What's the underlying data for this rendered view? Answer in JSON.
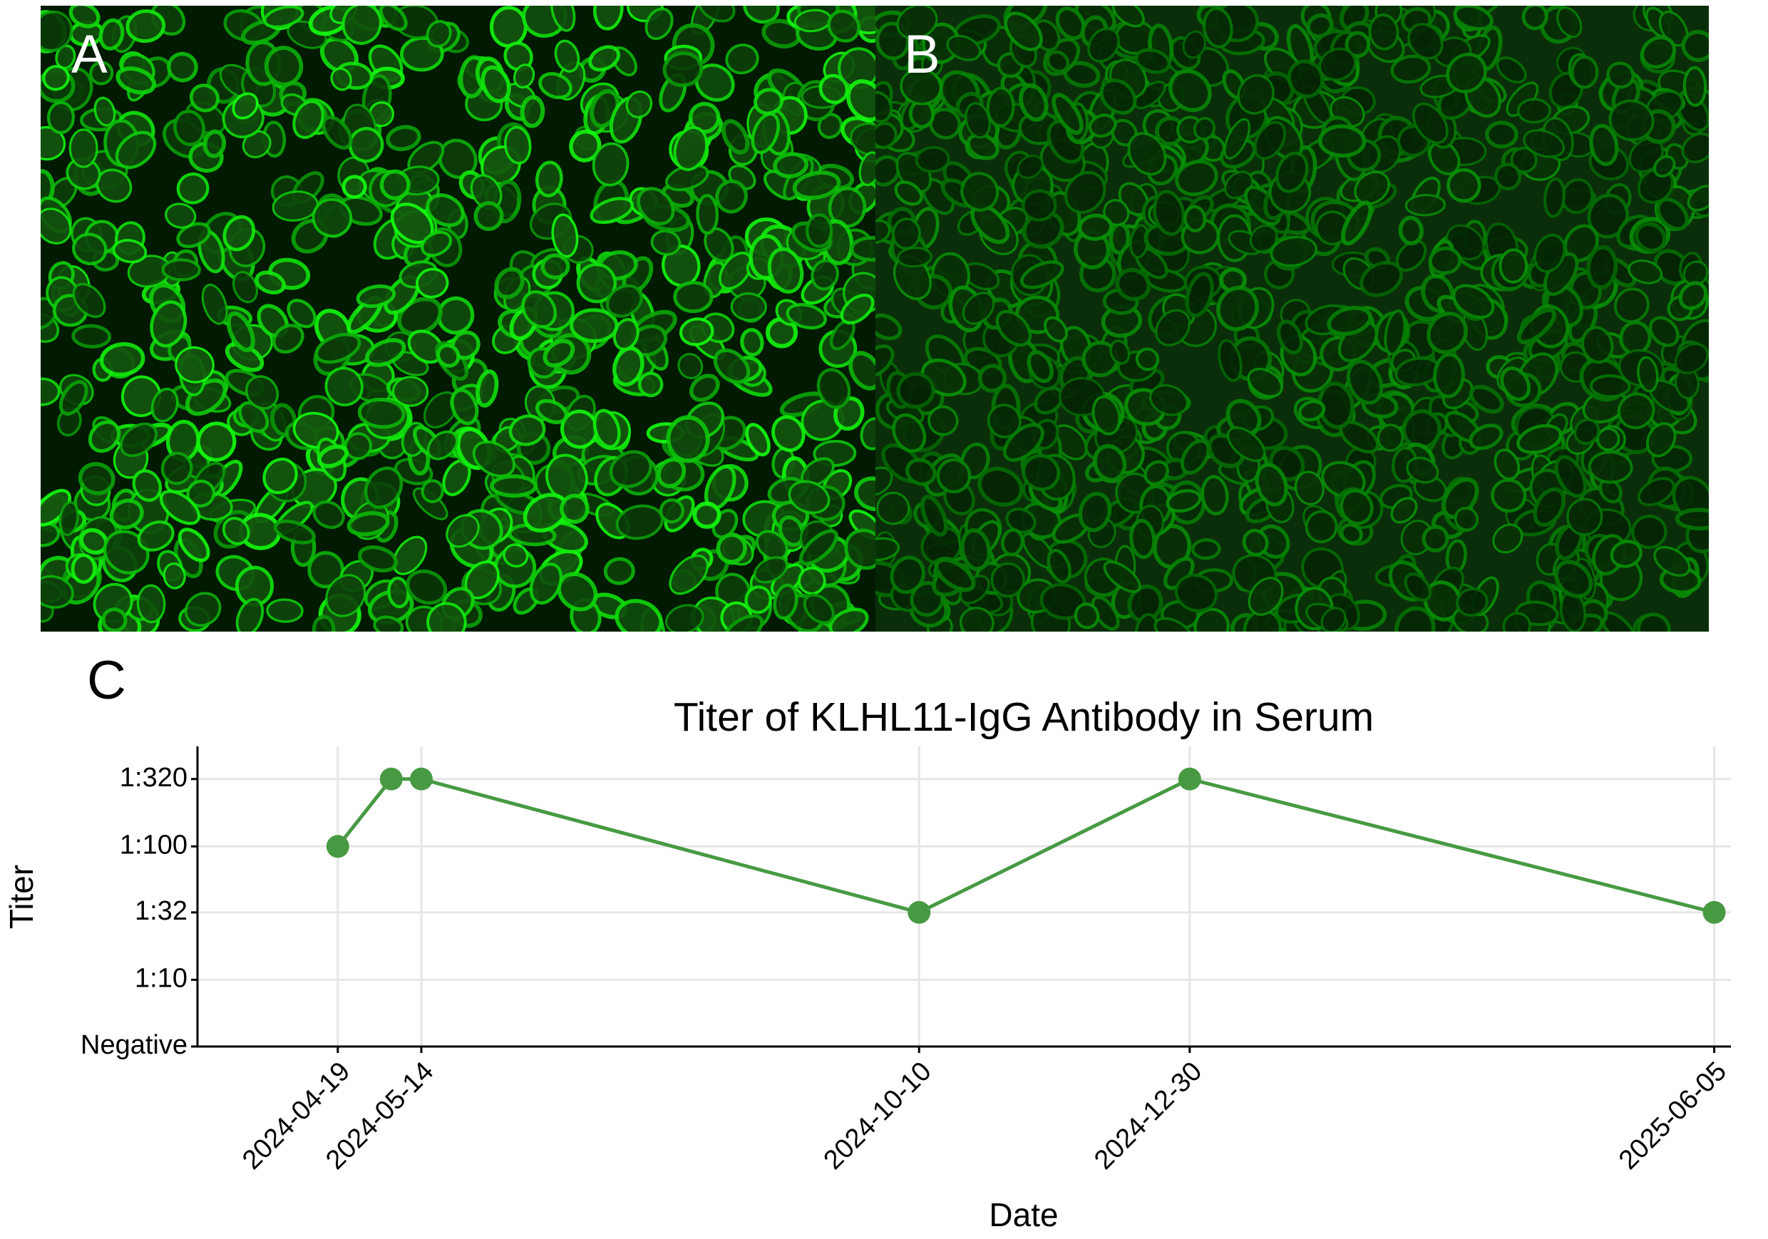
{
  "panel_labels": [
    "A",
    "B",
    "C"
  ],
  "chart_data": {
    "type": "line",
    "title": "Titer of KLHL11-IgG Antibody in Serum",
    "x_label": "Date",
    "y_label": "Titer",
    "x": [
      "2024-04-19",
      "2024-05-05",
      "2024-05-14",
      "2024-10-10",
      "2024-12-30",
      "2025-06-05"
    ],
    "series": [
      {
        "name": "KLHL11-IgG",
        "color": "#479a42",
        "values": [
          100,
          320,
          320,
          32,
          320,
          32
        ]
      }
    ],
    "xlim": [
      "2024-03-08",
      "2025-06-10"
    ],
    "xticks": [
      "2024-04-19",
      "2024-05-14",
      "2024-10-10",
      "2024-12-30",
      "2025-06-05"
    ],
    "y_scale": "log",
    "ylim": [
      3.16,
      562
    ],
    "yticks": [
      {
        "value": 3.16,
        "label": "Negative"
      },
      {
        "value": 10,
        "label": "1:10"
      },
      {
        "value": 32,
        "label": "1:32"
      },
      {
        "value": 100,
        "label": "1:100"
      },
      {
        "value": 320,
        "label": "1:320"
      }
    ],
    "grid": true
  }
}
